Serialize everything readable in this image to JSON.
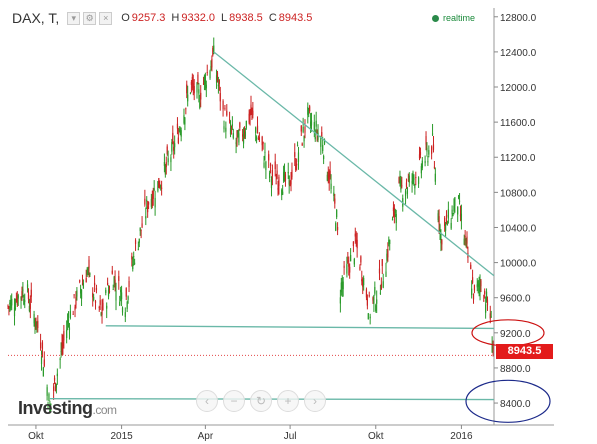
{
  "header": {
    "symbol": "DAX, T,",
    "open_label": "O",
    "open_value": "9257.3",
    "high_label": "H",
    "high_value": "9332.0",
    "low_label": "L",
    "low_value": "8938.5",
    "close_label": "C",
    "close_value": "8943.5",
    "realtime_label": "realtime"
  },
  "brand": {
    "name": "Investing",
    "domain": ".com"
  },
  "zoom_controls": [
    "‹",
    "−",
    "↻",
    "+",
    "›"
  ],
  "current_price": "8943.5",
  "colors": {
    "up": "#2a9a2a",
    "down": "#cc2222",
    "trend": "#6ab8a8",
    "axis": "#333333",
    "grid": "#e6e6e6",
    "annotation_red": "#cc1111",
    "annotation_blue": "#1c2a8a"
  },
  "chart_data": {
    "type": "candlestick",
    "title": "",
    "xlabel": "",
    "ylabel": "",
    "x_ticks": [
      "Okt",
      "2015",
      "Apr",
      "Jul",
      "Okt",
      "2016"
    ],
    "y_ticks": [
      8400,
      8800,
      9200,
      9600,
      10000,
      10400,
      10800,
      11200,
      11600,
      12000,
      12400,
      12800
    ],
    "y_tick_labels": [
      "8400.0",
      "8800.0",
      "9200.0",
      "9600.0",
      "10000.0",
      "10400.0",
      "10800.0",
      "11200.0",
      "11600.0",
      "12000.0",
      "12400.0",
      "12800.0"
    ],
    "ylim": [
      8150,
      12900
    ],
    "xlim": [
      "2014-09-01",
      "2016-02-05"
    ],
    "path": [
      [
        "2014-09-01",
        9500
      ],
      [
        "2014-09-20",
        9700
      ],
      [
        "2014-10-05",
        9200
      ],
      [
        "2014-10-16",
        8350
      ],
      [
        "2014-11-05",
        9350
      ],
      [
        "2014-11-25",
        9900
      ],
      [
        "2014-12-10",
        9400
      ],
      [
        "2014-12-22",
        9850
      ],
      [
        "2015-01-05",
        9550
      ],
      [
        "2015-01-15",
        10100
      ],
      [
        "2015-01-30",
        10700
      ],
      [
        "2015-02-15",
        11000
      ],
      [
        "2015-03-01",
        11400
      ],
      [
        "2015-03-16",
        12000
      ],
      [
        "2015-03-25",
        11900
      ],
      [
        "2015-04-10",
        12350
      ],
      [
        "2015-04-20",
        11700
      ],
      [
        "2015-05-05",
        11350
      ],
      [
        "2015-05-20",
        11700
      ],
      [
        "2015-06-10",
        11000
      ],
      [
        "2015-06-30",
        10900
      ],
      [
        "2015-07-20",
        11650
      ],
      [
        "2015-08-05",
        11400
      ],
      [
        "2015-08-20",
        10500
      ],
      [
        "2015-08-24",
        9700
      ],
      [
        "2015-09-10",
        10200
      ],
      [
        "2015-09-25",
        9450
      ],
      [
        "2015-10-10",
        9900
      ],
      [
        "2015-10-25",
        10800
      ],
      [
        "2015-11-10",
        10950
      ],
      [
        "2015-12-01",
        11350
      ],
      [
        "2015-12-10",
        10300
      ],
      [
        "2015-12-28",
        10700
      ],
      [
        "2016-01-04",
        10300
      ],
      [
        "2016-01-15",
        9600
      ],
      [
        "2016-01-22",
        9800
      ],
      [
        "2016-02-01",
        9400
      ],
      [
        "2016-02-05",
        8950
      ]
    ],
    "trendlines": [
      {
        "from": [
          "2015-04-10",
          12400
        ],
        "to": [
          "2016-02-05",
          9850
        ]
      },
      {
        "from": [
          "2014-12-15",
          9280
        ],
        "to": [
          "2016-02-05",
          9250
        ]
      },
      {
        "from": [
          "2014-10-16",
          8450
        ],
        "to": [
          "2016-02-05",
          8440
        ]
      }
    ],
    "annotations": [
      {
        "shape": "ellipse",
        "color": "red",
        "center_price": 9200
      },
      {
        "shape": "ellipse",
        "color": "blue",
        "center_price": 8420
      }
    ],
    "last_price_line": 8943.5
  }
}
